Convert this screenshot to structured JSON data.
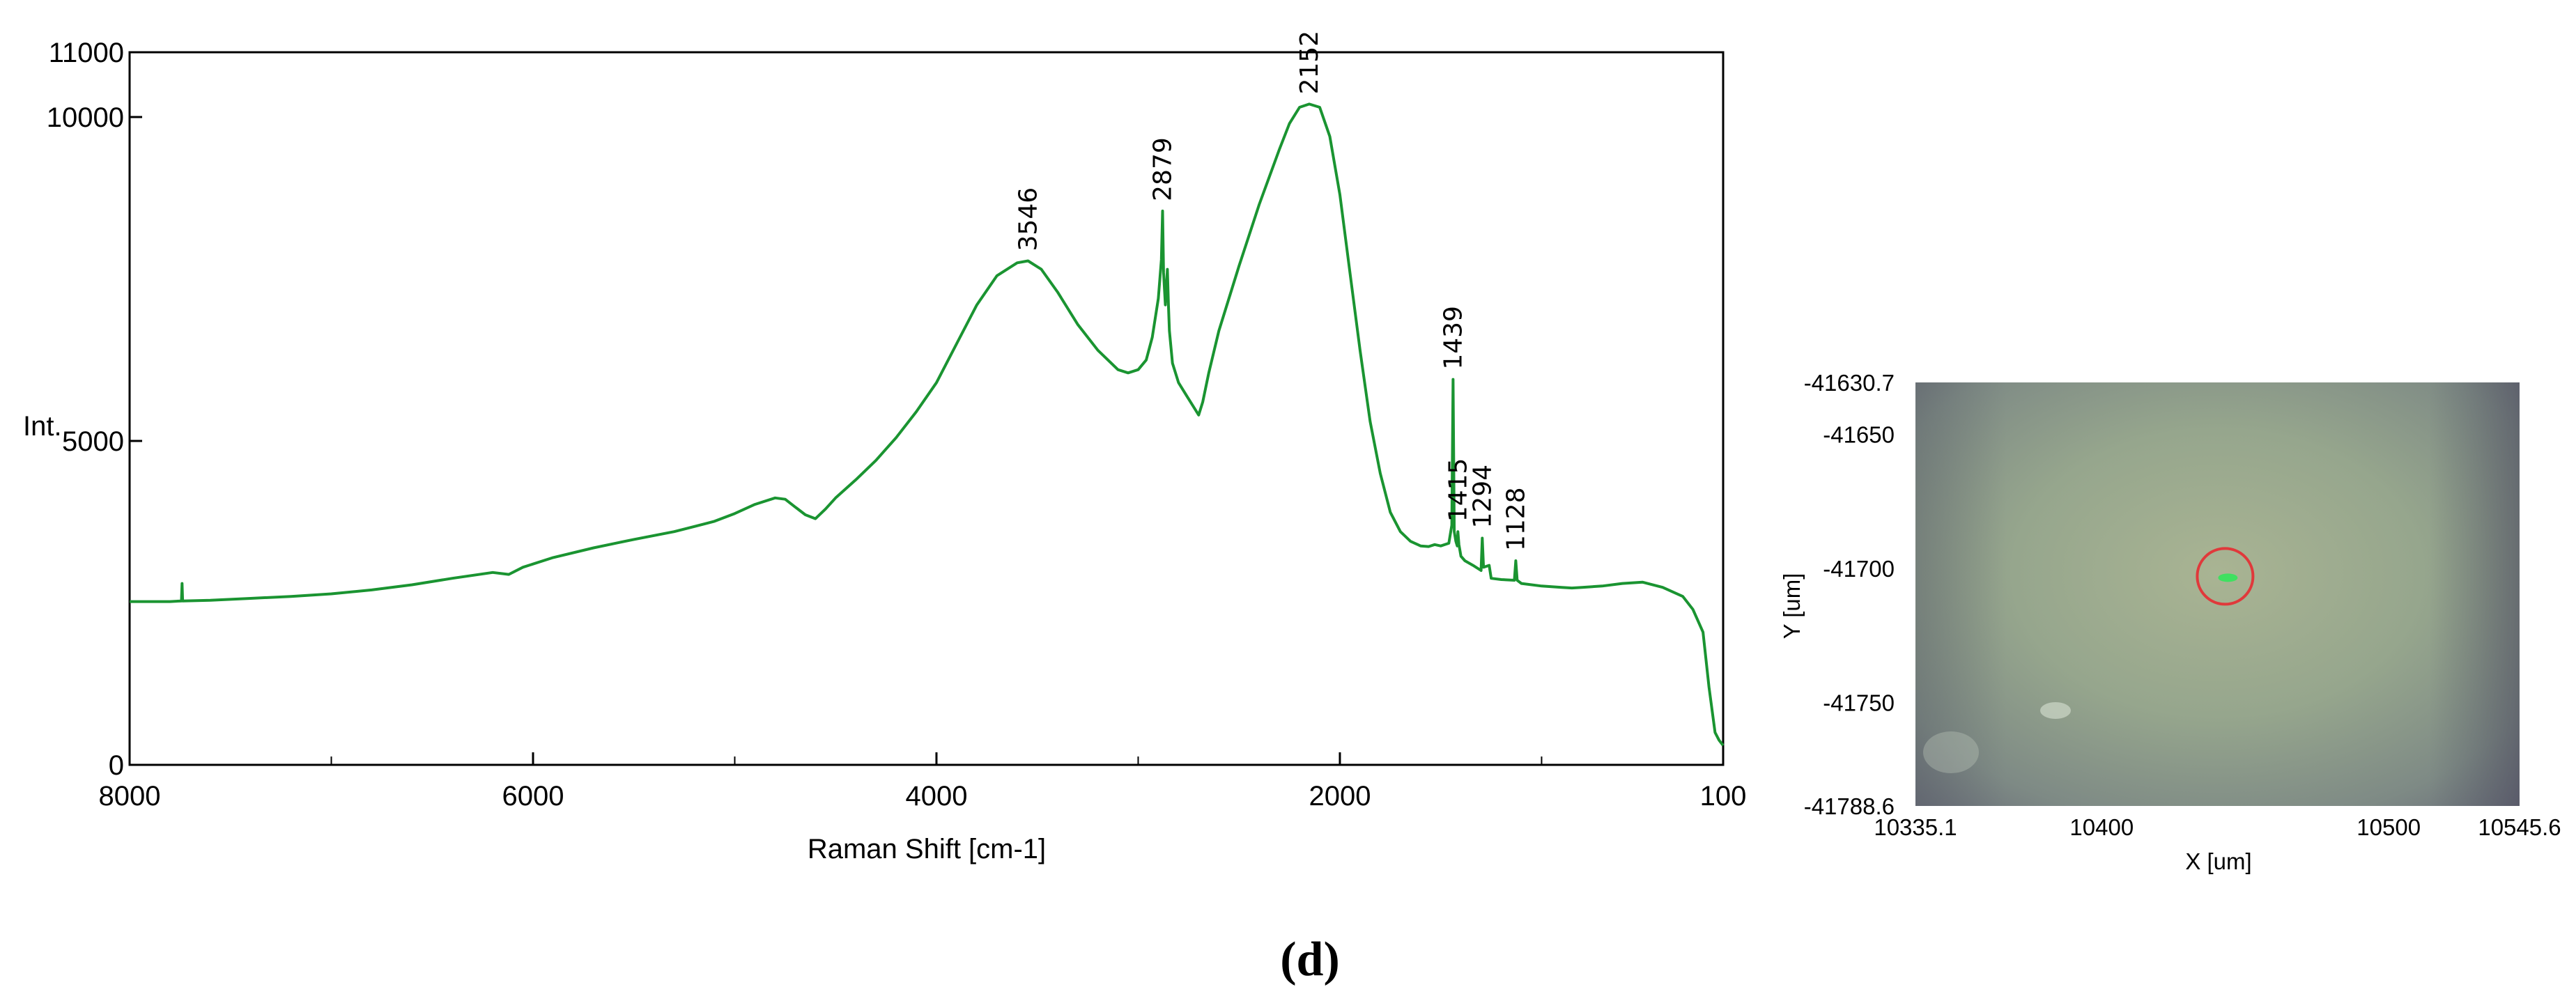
{
  "panel_label": "(d)",
  "chart_data": {
    "type": "line",
    "title": "",
    "xlabel": "Raman Shift [cm-1]",
    "ylabel": "Int.",
    "xlim": [
      8000,
      100
    ],
    "ylim": [
      0,
      11000
    ],
    "x_reversed": true,
    "grid": false,
    "x_tick_labels": [
      "8000",
      "6000",
      "4000",
      "2000",
      "100"
    ],
    "x_tick_values": [
      8000,
      6000,
      4000,
      2000,
      100
    ],
    "y_tick_labels": [
      "0",
      "5000",
      "10000",
      "11000"
    ],
    "y_tick_values": [
      0,
      5000,
      10000,
      11000
    ],
    "line_color": "#1a9431",
    "series": [
      {
        "x": [
          8000,
          7800,
          7743,
          7740,
          7737,
          7600,
          7400,
          7200,
          7000,
          6800,
          6600,
          6400,
          6200,
          6120,
          6050,
          5900,
          5700,
          5500,
          5300,
          5200,
          5100,
          5000,
          4900,
          4800,
          4750,
          4700,
          4650,
          4600,
          4550,
          4500,
          4400,
          4300,
          4200,
          4100,
          4000,
          3900,
          3800,
          3700,
          3600,
          3546,
          3480,
          3400,
          3300,
          3200,
          3100,
          3050,
          3000,
          2960,
          2930,
          2900,
          2885,
          2879,
          2874,
          2865,
          2855,
          2850,
          2845,
          2830,
          2800,
          2760,
          2720,
          2700,
          2680,
          2650,
          2600,
          2500,
          2400,
          2300,
          2250,
          2200,
          2152,
          2100,
          2050,
          2000,
          1950,
          1900,
          1850,
          1800,
          1750,
          1700,
          1650,
          1600,
          1560,
          1530,
          1500,
          1460,
          1445,
          1439,
          1433,
          1425,
          1418,
          1415,
          1410,
          1400,
          1380,
          1340,
          1300,
          1294,
          1288,
          1260,
          1250,
          1200,
          1135,
          1128,
          1121,
          1100,
          1000,
          900,
          850,
          800,
          700,
          600,
          500,
          400,
          300,
          250,
          200,
          170,
          140,
          120,
          100
        ],
        "y": [
          2520,
          2520,
          2530,
          2800,
          2530,
          2540,
          2570,
          2600,
          2640,
          2700,
          2780,
          2880,
          2970,
          2940,
          3050,
          3200,
          3350,
          3480,
          3600,
          3680,
          3760,
          3880,
          4020,
          4120,
          4100,
          3980,
          3860,
          3800,
          3950,
          4120,
          4400,
          4700,
          5050,
          5450,
          5900,
          6500,
          7100,
          7550,
          7750,
          7780,
          7650,
          7300,
          6800,
          6400,
          6100,
          6050,
          6100,
          6250,
          6600,
          7200,
          7800,
          8550,
          7600,
          7100,
          7650,
          7100,
          6700,
          6200,
          5900,
          5700,
          5500,
          5400,
          5600,
          6050,
          6700,
          7700,
          8650,
          9500,
          9900,
          10150,
          10200,
          10150,
          9700,
          8800,
          7600,
          6400,
          5300,
          4500,
          3900,
          3600,
          3450,
          3380,
          3370,
          3400,
          3380,
          3420,
          3700,
          5950,
          3600,
          3450,
          3380,
          3600,
          3400,
          3220,
          3150,
          3080,
          3000,
          3500,
          3050,
          3080,
          2880,
          2860,
          2850,
          3150,
          2850,
          2800,
          2760,
          2740,
          2730,
          2740,
          2760,
          2800,
          2820,
          2740,
          2600,
          2400,
          2050,
          1200,
          500,
          380,
          300
        ]
      }
    ],
    "peak_annotations": [
      {
        "x": 3546,
        "label": "3546"
      },
      {
        "x": 2879,
        "label": "2879"
      },
      {
        "x": 2152,
        "label": "2152"
      },
      {
        "x": 1439,
        "label": "1439"
      },
      {
        "x": 1415,
        "label": "1415"
      },
      {
        "x": 1294,
        "label": "1294"
      },
      {
        "x": 1128,
        "label": "1128"
      }
    ]
  },
  "micrograph": {
    "xlabel": "X [um]",
    "ylabel": "Y [um]",
    "xlim": [
      10335.1,
      10545.6
    ],
    "ylim": [
      -41788.6,
      -41630.7
    ],
    "x_tick_labels": [
      "10335.1",
      "10400",
      "10500",
      "10545.6"
    ],
    "x_tick_values": [
      10335.1,
      10400,
      10500,
      10545.6
    ],
    "y_tick_labels": [
      "-41630.7",
      "-41650",
      "-41700",
      "-41750",
      "-41788.6"
    ],
    "y_tick_values": [
      -41630.7,
      -41650,
      -41700,
      -41750,
      -41788.6
    ],
    "marker": {
      "x": 10443,
      "y": -41703
    },
    "marker_color": "#e0393b",
    "laser_spot_color": "#3fe060"
  }
}
